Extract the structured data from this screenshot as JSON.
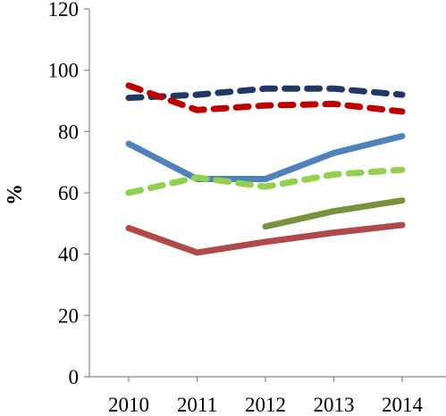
{
  "chart_data": {
    "type": "line",
    "title": "",
    "xlabel": "",
    "ylabel": "%",
    "x": [
      "2010",
      "2011",
      "2012",
      "2013",
      "2014"
    ],
    "ylim": [
      0,
      120
    ],
    "yticks": [
      "0",
      "20",
      "40",
      "60",
      "80",
      "100",
      "120"
    ],
    "grid": false,
    "legend": "none",
    "series": [
      {
        "color": "#1F3864",
        "dash": "dashed",
        "values": [
          91,
          92,
          94,
          94,
          92
        ]
      },
      {
        "color": "#C00000",
        "dash": "dashed",
        "values": [
          95,
          87,
          88.5,
          89,
          86.5
        ]
      },
      {
        "color": "#4F81BD",
        "dash": "solid",
        "values": [
          76,
          64.5,
          64.5,
          73,
          78.5
        ]
      },
      {
        "color": "#92D050",
        "dash": "dashed",
        "values": [
          60,
          65,
          62,
          66,
          67.5
        ]
      },
      {
        "color": "#77933C",
        "dash": "solid",
        "values": [
          null,
          null,
          49,
          54,
          57.5
        ]
      },
      {
        "color": "#B04A48",
        "dash": "solid",
        "values": [
          48.5,
          40.5,
          44,
          47,
          49.5
        ]
      }
    ]
  }
}
